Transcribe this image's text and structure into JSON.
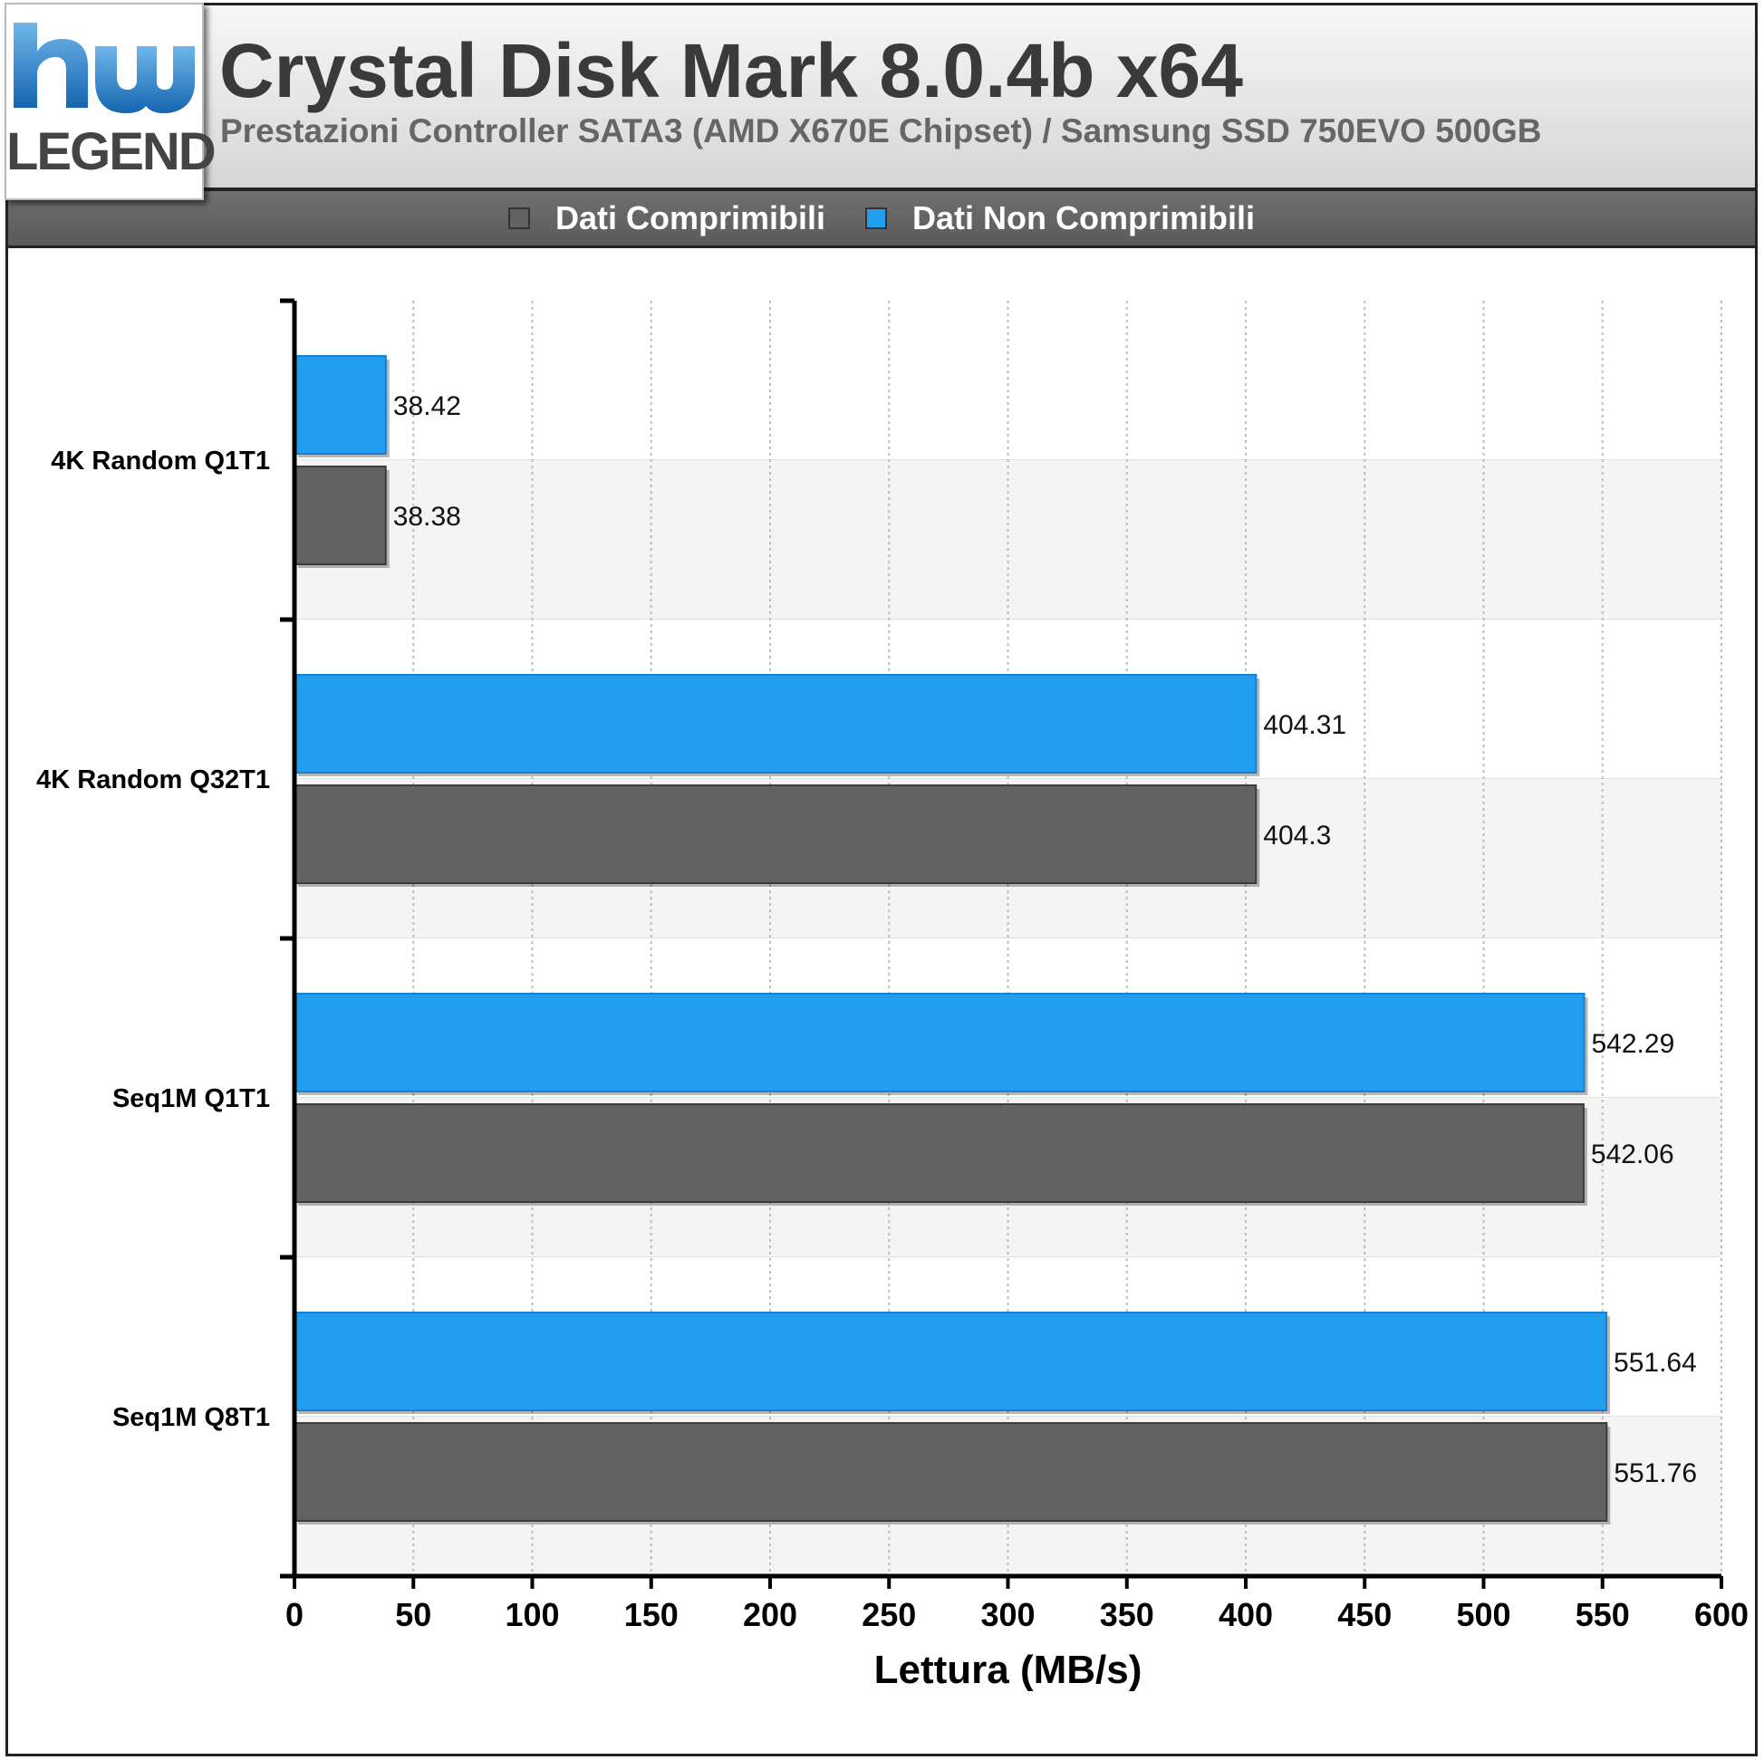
{
  "header": {
    "title": "Crystal Disk Mark 8.0.4b x64",
    "subtitle": "Prestazioni Controller SATA3 (AMD X670E Chipset) / Samsung SSD 750EVO 500GB",
    "logo_text": "LEGEND"
  },
  "legend": {
    "items": [
      {
        "label": "Dati Comprimibili",
        "color": "#626262"
      },
      {
        "label": "Dati Non Comprimibili",
        "color": "#229eee"
      }
    ]
  },
  "chart_data": {
    "type": "bar",
    "orientation": "horizontal",
    "categories": [
      "4K Random Q1T1",
      "4K Random Q32T1",
      "Seq1M Q1T1",
      "Seq1M Q8T1"
    ],
    "series": [
      {
        "name": "Dati Non Comprimibili",
        "color": "#229eee",
        "values": [
          38.42,
          404.31,
          542.29,
          551.64
        ]
      },
      {
        "name": "Dati Comprimibili",
        "color": "#626262",
        "values": [
          38.38,
          404.3,
          542.06,
          551.76
        ]
      }
    ],
    "value_labels": [
      [
        "38.42",
        "404.31",
        "542.29",
        "551.64"
      ],
      [
        "38.38",
        "404.3",
        "542.06",
        "551.76"
      ]
    ],
    "xlabel": "Lettura (MB/s)",
    "xlim": [
      0,
      600
    ],
    "xticks": [
      "0",
      "50",
      "100",
      "150",
      "200",
      "250",
      "300",
      "350",
      "400",
      "450",
      "500",
      "550",
      "600"
    ],
    "grid": "vertical-dashed",
    "legend_position": "top"
  }
}
